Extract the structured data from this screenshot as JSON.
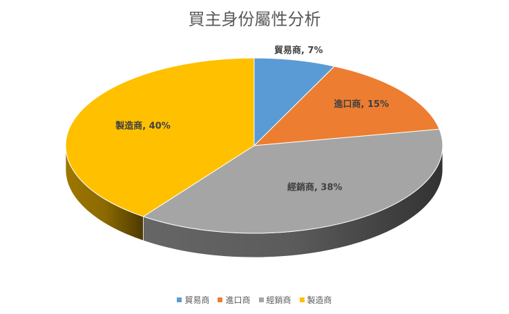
{
  "chart_data": {
    "type": "pie",
    "title": "買主身份屬性分析",
    "categories": [
      "貿易商",
      "進口商",
      "經銷商",
      "製造商"
    ],
    "values": [
      7,
      15,
      38,
      40
    ],
    "colors": [
      "#5b9bd5",
      "#ed7d31",
      "#a5a5a5",
      "#ffc000"
    ],
    "data_labels": [
      "貿易商, 7%",
      "進口商, 15%",
      "經銷商, 38%",
      "製造商, 40%"
    ],
    "legend_position": "bottom"
  }
}
